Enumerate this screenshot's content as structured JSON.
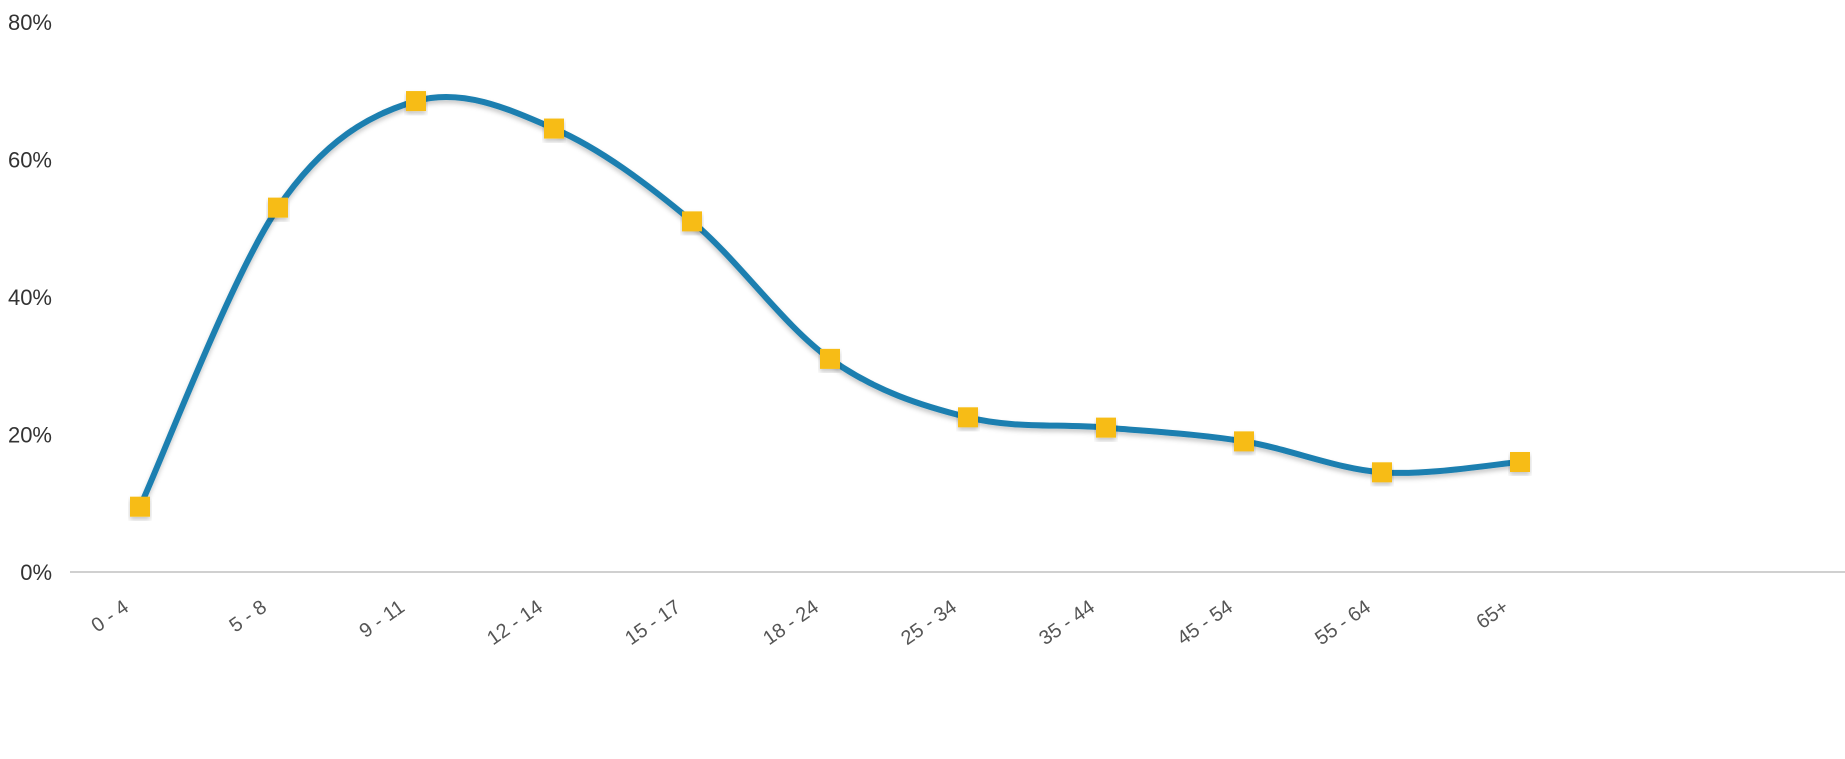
{
  "chart_data": {
    "type": "line",
    "categories": [
      "0 - 4",
      "5 - 8",
      "9 - 11",
      "12 - 14",
      "15 - 17",
      "18 - 24",
      "25 - 34",
      "35 - 44",
      "45 - 54",
      "55 - 64",
      "65+"
    ],
    "series": [
      {
        "values": [
          9.5,
          53,
          68.5,
          64.5,
          51,
          31,
          22.5,
          21,
          19,
          14.5,
          16
        ]
      }
    ],
    "ylim": [
      0,
      80
    ],
    "yticks": [
      "0%",
      "20%",
      "40%",
      "60%",
      "80%"
    ],
    "smooth": true,
    "grid": false,
    "colors": {
      "line": "#1a7fb0",
      "marker": "#f7bc12",
      "axis": "#d0d0d0"
    }
  }
}
